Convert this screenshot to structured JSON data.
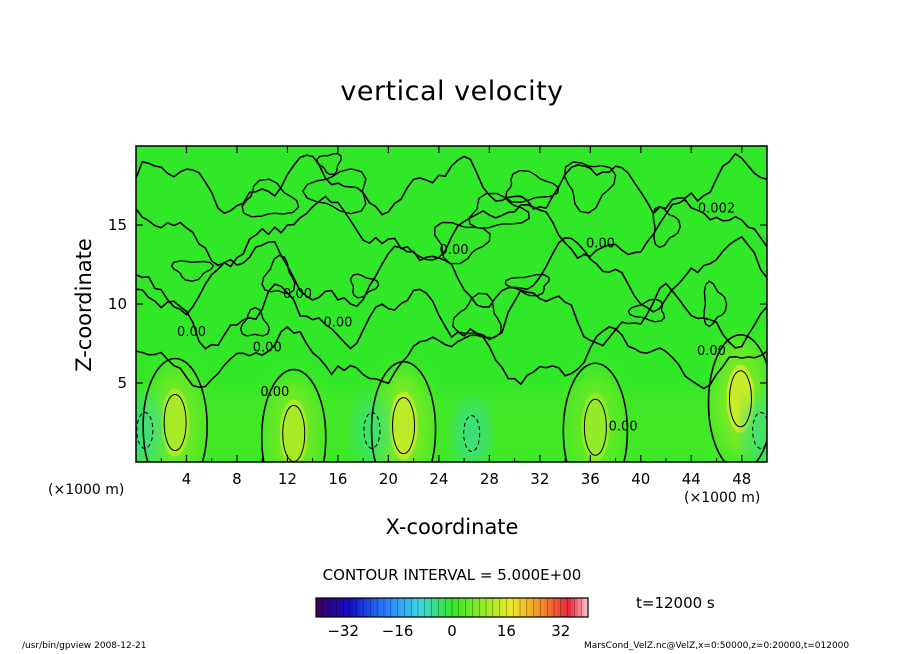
{
  "chart_data": {
    "type": "heatmap",
    "title": "vertical velocity",
    "xlabel": "X-coordinate",
    "ylabel": "Z-coordinate",
    "x_unit_left": "(×1000 m)",
    "x_unit_right": "(×1000 m)",
    "xlim": [
      0,
      50
    ],
    "ylim": [
      0,
      20
    ],
    "x_ticks": [
      4,
      8,
      12,
      16,
      20,
      24,
      28,
      32,
      36,
      40,
      44,
      48
    ],
    "y_ticks": [
      5,
      10,
      15
    ],
    "contour_interval_label": "CONTOUR INTERVAL = 5.000E+00",
    "contour_labels": [
      {
        "text": "0.00",
        "x": 25.2,
        "z": 13.4
      },
      {
        "text": "0.00",
        "x": 12.8,
        "z": 10.6
      },
      {
        "text": "0.00",
        "x": 4.4,
        "z": 8.2
      },
      {
        "text": "0.00",
        "x": 10.4,
        "z": 7.2
      },
      {
        "text": "0.00",
        "x": 16.0,
        "z": 8.8
      },
      {
        "text": "0.00",
        "x": 11.0,
        "z": 4.4
      },
      {
        "text": "0.00",
        "x": 36.8,
        "z": 13.8
      },
      {
        "text": "0.002",
        "x": 46.0,
        "z": 16.0
      },
      {
        "text": "0.00",
        "x": 45.6,
        "z": 7.0
      },
      {
        "text": "0.00",
        "x": 38.6,
        "z": 2.2
      }
    ],
    "updraft_cores": [
      {
        "x": 3.1,
        "z": 2.5,
        "peak": 12
      },
      {
        "x": 12.5,
        "z": 1.8,
        "peak": 12
      },
      {
        "x": 21.2,
        "z": 2.3,
        "peak": 14
      },
      {
        "x": 36.4,
        "z": 2.2,
        "peak": 10
      },
      {
        "x": 47.9,
        "z": 4.0,
        "peak": 15
      }
    ],
    "downdraft_cores": [
      {
        "x": 0.7,
        "z": 2.0,
        "peak": -6
      },
      {
        "x": 18.7,
        "z": 2.0,
        "peak": -5
      },
      {
        "x": 26.6,
        "z": 1.8,
        "peak": -6
      },
      {
        "x": 49.5,
        "z": 2.0,
        "peak": -5
      }
    ],
    "colorbar": {
      "range": [
        -40,
        40
      ],
      "tick_values": [
        -32,
        -16,
        0,
        16,
        32
      ],
      "tick_labels": [
        "−32",
        "−16",
        "0",
        "16",
        "32"
      ]
    },
    "grid": false,
    "colors": {
      "background": "#31e828",
      "contour": "#000000"
    }
  },
  "time_label": "t=12000 s",
  "footer": {
    "left": "/usr/bin/gpview   2008-12-21",
    "right": "MarsCond_VelZ.nc@VelZ,x=0:50000,z=0:20000,t=012000"
  }
}
